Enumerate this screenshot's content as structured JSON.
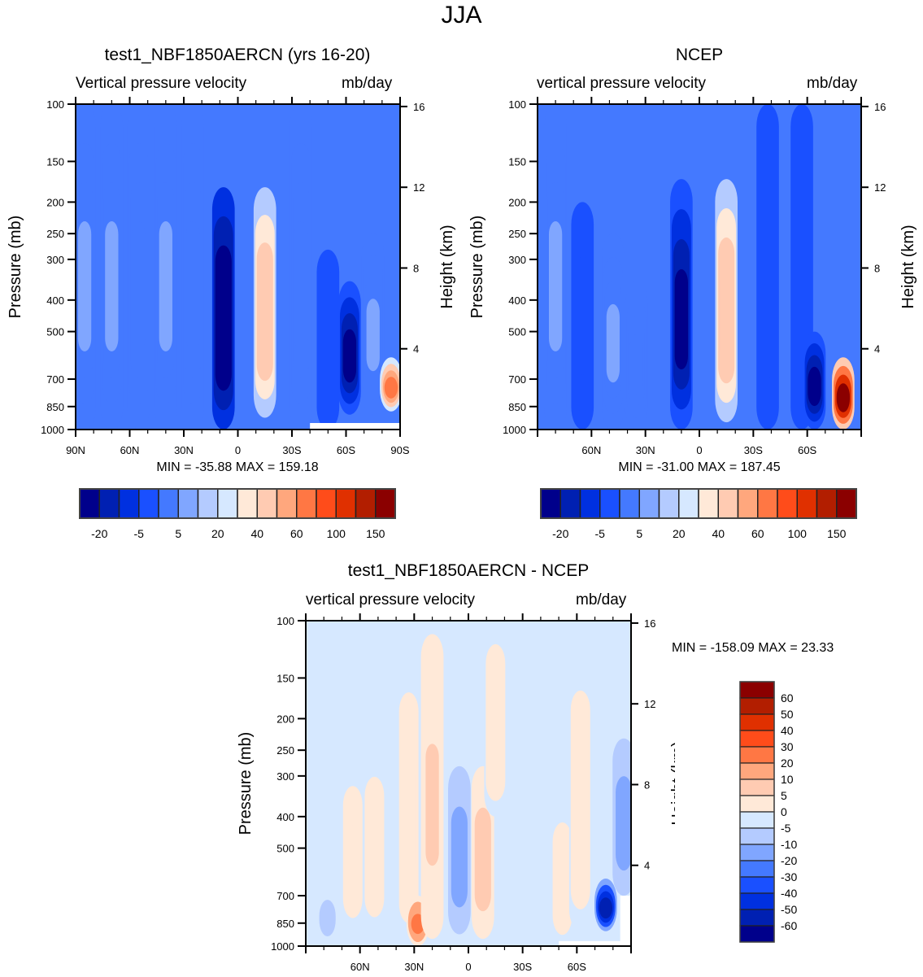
{
  "figure": {
    "title": "JJA"
  },
  "chart_data": [
    {
      "id": "model",
      "type": "heatmap",
      "title": "test1_NBF1850AERCN (yrs 16-20)",
      "left_label": "Vertical pressure velocity",
      "right_label": "mb/day",
      "xlabel": "",
      "ylabel": "Pressure (mb)",
      "ylabel_right": "Height (km)",
      "x_ticks": [
        "90N",
        "60N",
        "30N",
        "0",
        "30S",
        "60S",
        "90S"
      ],
      "x_range": [
        90,
        -90
      ],
      "y_ticks": [
        100,
        150,
        200,
        250,
        300,
        400,
        500,
        700,
        850,
        1000
      ],
      "y_range": [
        100,
        1000
      ],
      "y_right_ticks": [
        16,
        12,
        8,
        4
      ],
      "stats": "MIN = -35.88  MAX = 159.18",
      "min": -35.88,
      "max": 159.18,
      "features": [
        {
          "lat": 85,
          "lev_top": 100,
          "lev_bot": 1000,
          "value": -5
        },
        {
          "lat": 70,
          "lev_top": 100,
          "lev_bot": 1000,
          "value": -5
        },
        {
          "lat": 55,
          "lev_top": 100,
          "lev_bot": 1000,
          "value": -10
        },
        {
          "lat": 40,
          "lev_top": 100,
          "lev_bot": 1000,
          "value": -5
        },
        {
          "lat": 25,
          "lev_top": 100,
          "lev_bot": 1000,
          "value": -10
        },
        {
          "lat": 8,
          "lev_top": 180,
          "lev_bot": 1000,
          "value": -35
        },
        {
          "lat": -15,
          "lev_top": 180,
          "lev_bot": 920,
          "value": 30
        },
        {
          "lat": -35,
          "lev_top": 100,
          "lev_bot": 1000,
          "value": -10
        },
        {
          "lat": -50,
          "lev_top": 280,
          "lev_bot": 1000,
          "value": -15
        },
        {
          "lat": -62,
          "lev_top": 350,
          "lev_bot": 900,
          "value": -30
        },
        {
          "lat": -75,
          "lev_top": 250,
          "lev_bot": 900,
          "value": -5
        },
        {
          "lat": -85,
          "lev_top": 600,
          "lev_bot": 880,
          "value": 60
        }
      ]
    },
    {
      "id": "obs",
      "type": "heatmap",
      "title": "NCEP",
      "left_label": "vertical pressure velocity",
      "right_label": "mb/day",
      "xlabel": "",
      "ylabel": "Pressure (mb)",
      "ylabel_right": "Height (km)",
      "x_ticks": [
        "60N",
        "30N",
        "0",
        "30S",
        "60S"
      ],
      "x_range": [
        90,
        -90
      ],
      "y_ticks": [
        100,
        150,
        200,
        250,
        300,
        400,
        500,
        700,
        850,
        1000
      ],
      "y_range": [
        100,
        1000
      ],
      "y_right_ticks": [
        16,
        12,
        8,
        4
      ],
      "stats": "MIN = -31.00  MAX = 187.45",
      "min": -31.0,
      "max": 187.45,
      "features": [
        {
          "lat": 80,
          "lev_top": 100,
          "lev_bot": 1000,
          "value": -5
        },
        {
          "lat": 65,
          "lev_top": 200,
          "lev_bot": 1000,
          "value": -15
        },
        {
          "lat": 48,
          "lev_top": 250,
          "lev_bot": 1000,
          "value": -5
        },
        {
          "lat": 35,
          "lev_top": 350,
          "lev_bot": 1000,
          "value": -10
        },
        {
          "lat": 10,
          "lev_top": 170,
          "lev_bot": 1000,
          "value": -30
        },
        {
          "lat": -15,
          "lev_top": 170,
          "lev_bot": 950,
          "value": 30
        },
        {
          "lat": -38,
          "lev_top": 100,
          "lev_bot": 1000,
          "value": -12
        },
        {
          "lat": -57,
          "lev_top": 100,
          "lev_bot": 1000,
          "value": -15
        },
        {
          "lat": -64,
          "lev_top": 500,
          "lev_bot": 1000,
          "value": -30
        },
        {
          "lat": -80,
          "lev_top": 600,
          "lev_bot": 1000,
          "value": 150
        }
      ]
    },
    {
      "id": "diff",
      "type": "heatmap",
      "title": "test1_NBF1850AERCN - NCEP",
      "left_label": "vertical pressure velocity",
      "right_label": "mb/day",
      "xlabel": "",
      "ylabel": "Pressure (mb)",
      "ylabel_right": "Height (km)",
      "x_ticks": [
        "60N",
        "30N",
        "0",
        "30S",
        "60S"
      ],
      "x_range": [
        90,
        -90
      ],
      "y_ticks": [
        100,
        150,
        200,
        250,
        300,
        400,
        500,
        700,
        850,
        1000
      ],
      "y_range": [
        100,
        1000
      ],
      "y_right_ticks": [
        16,
        12,
        8,
        4
      ],
      "stats": "MIN = -158.09  MAX =  23.33",
      "min": -158.09,
      "max": 23.33,
      "features": [
        {
          "lat": 78,
          "lev_top": 650,
          "lev_bot": 1000,
          "value": -8
        },
        {
          "lat": 64,
          "lev_top": 280,
          "lev_bot": 900,
          "value": 3
        },
        {
          "lat": 52,
          "lev_top": 260,
          "lev_bot": 900,
          "value": 3
        },
        {
          "lat": 33,
          "lev_top": 130,
          "lev_bot": 1000,
          "value": 4
        },
        {
          "lat": 28,
          "lev_top": 700,
          "lev_bot": 1000,
          "value": 25
        },
        {
          "lat": 20,
          "lev_top": 110,
          "lev_bot": 950,
          "value": 7
        },
        {
          "lat": 5,
          "lev_top": 280,
          "lev_bot": 920,
          "value": -15
        },
        {
          "lat": -8,
          "lev_top": 280,
          "lev_bot": 950,
          "value": 8
        },
        {
          "lat": -15,
          "lev_top": 100,
          "lev_bot": 400,
          "value": 3
        },
        {
          "lat": -52,
          "lev_top": 370,
          "lev_bot": 1000,
          "value": 3
        },
        {
          "lat": -62,
          "lev_top": 130,
          "lev_bot": 900,
          "value": 4
        },
        {
          "lat": -76,
          "lev_top": 620,
          "lev_bot": 900,
          "value": -60
        },
        {
          "lat": -86,
          "lev_top": 230,
          "lev_bot": 700,
          "value": -15
        }
      ]
    }
  ],
  "colorbars": {
    "top": {
      "orientation": "horizontal",
      "colors": [
        "#00008b",
        "#0020b2",
        "#0030e0",
        "#1a50ff",
        "#4479ff",
        "#80a6ff",
        "#b4cbff",
        "#d6e8ff",
        "#ffe9d8",
        "#ffcbb2",
        "#ffa77d",
        "#ff7744",
        "#ff4c1a",
        "#e03000",
        "#b21e00",
        "#8b0000"
      ],
      "labels": [
        "-20",
        "-5",
        "5",
        "20",
        "40",
        "60",
        "100",
        "150"
      ],
      "levels": [
        -30,
        -25,
        -20,
        -15,
        -10,
        -5,
        0,
        5,
        10,
        15,
        20,
        40,
        60,
        80,
        100,
        150
      ]
    },
    "diff": {
      "orientation": "vertical",
      "colors": [
        "#8b0000",
        "#b21e00",
        "#e03000",
        "#ff4c1a",
        "#ff7744",
        "#ffa77d",
        "#ffcbb2",
        "#ffe9d8",
        "#d6e8ff",
        "#b4cbff",
        "#80a6ff",
        "#4479ff",
        "#1a50ff",
        "#0030e0",
        "#0020b2",
        "#00008b"
      ],
      "labels": [
        "60",
        "50",
        "40",
        "30",
        "20",
        "10",
        "5",
        "0",
        "-5",
        "-10",
        "-20",
        "-30",
        "-40",
        "-50",
        "-60"
      ],
      "levels": [
        60,
        50,
        40,
        30,
        20,
        10,
        5,
        0,
        -5,
        -10,
        -20,
        -30,
        -40,
        -50,
        -60
      ]
    }
  }
}
